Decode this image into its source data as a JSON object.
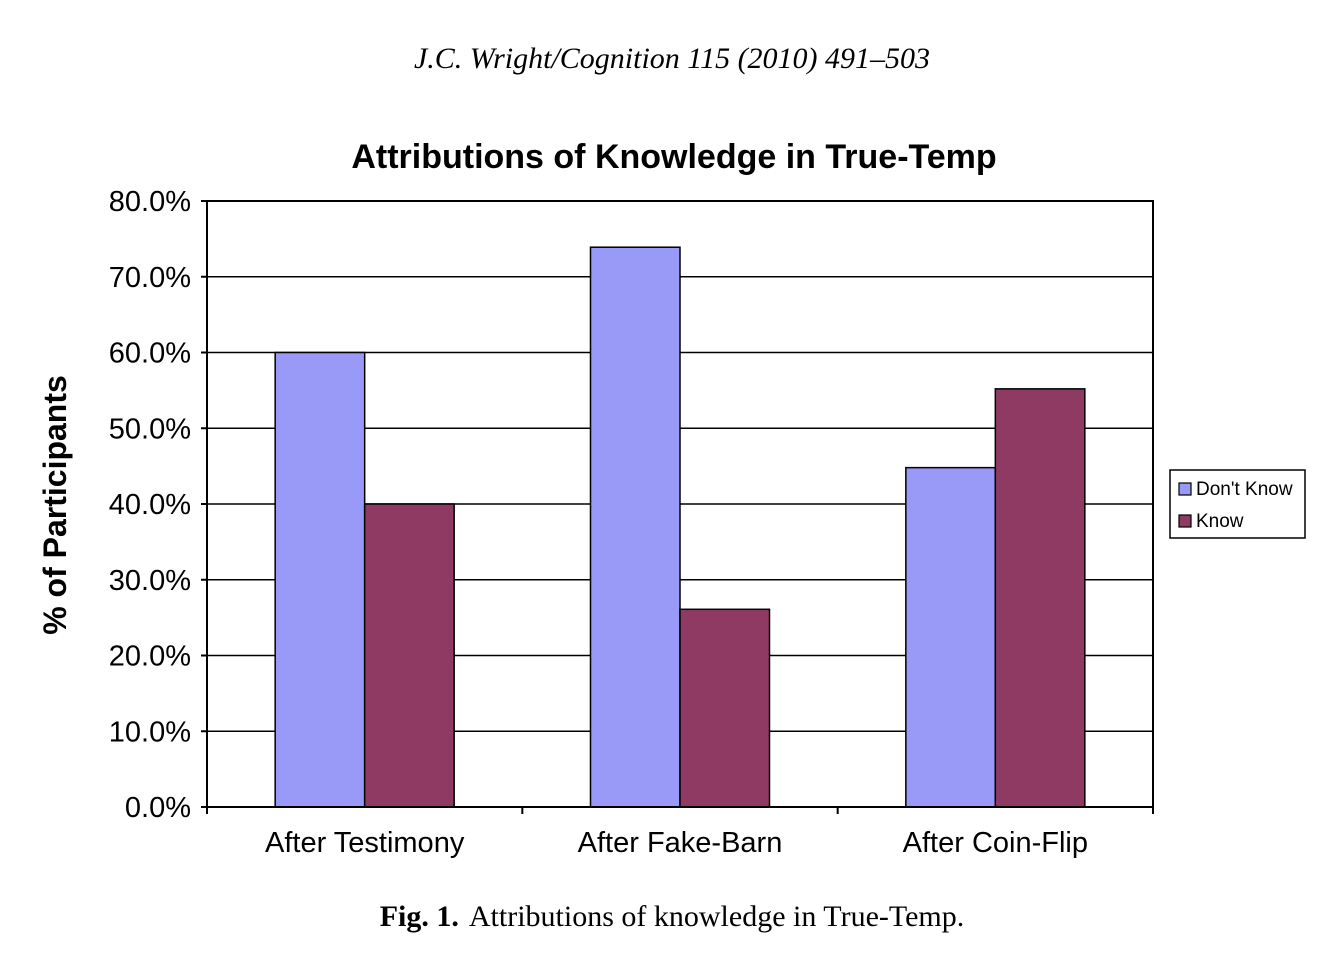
{
  "header": {
    "citation": "J.C. Wright/Cognition 115 (2010) 491–503"
  },
  "caption": {
    "label": "Fig. 1.",
    "text": "Attributions of knowledge in True-Temp."
  },
  "chart_data": {
    "type": "bar",
    "title": "Attributions of Knowledge in True-Temp",
    "xlabel": "",
    "ylabel": "% of Participants",
    "categories": [
      "After Testimony",
      "After Fake-Barn",
      "After Coin-Flip"
    ],
    "series": [
      {
        "name": "Don't Know",
        "values": [
          60.0,
          73.9,
          44.8
        ],
        "color": "#9999f7"
      },
      {
        "name": "Know",
        "values": [
          40.0,
          26.1,
          55.2
        ],
        "color": "#8f3a62"
      }
    ],
    "ylim": [
      0,
      80
    ],
    "yticks": [
      "0.0%",
      "10.0%",
      "20.0%",
      "30.0%",
      "40.0%",
      "50.0%",
      "60.0%",
      "70.0%",
      "80.0%"
    ],
    "grid": true,
    "legend_position": "right"
  }
}
